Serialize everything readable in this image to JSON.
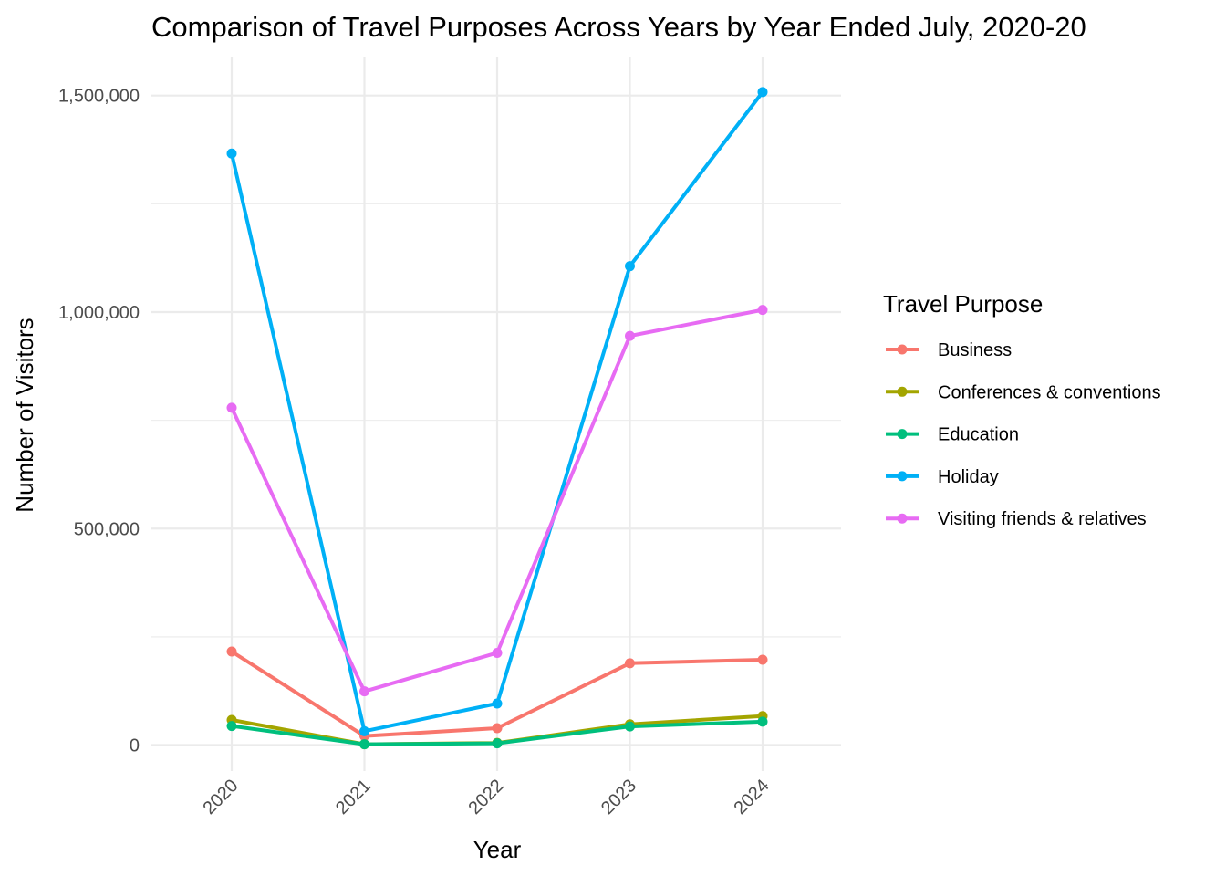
{
  "chart_data": {
    "type": "line",
    "title": "Comparison of Travel Purposes Across Years by Year Ended July, 2020-20",
    "xlabel": "Year",
    "ylabel": "Number of Visitors",
    "x": [
      "2020",
      "2021",
      "2022",
      "2023",
      "2024"
    ],
    "ylim": [
      -60000,
      1590000
    ],
    "y_ticks": [
      0,
      500000,
      1000000,
      1500000
    ],
    "y_tick_labels": [
      "0",
      "500,000",
      "1,000,000",
      "1,500,000"
    ],
    "legend_title": "Travel Purpose",
    "legend_position": "right",
    "grid": true,
    "series": [
      {
        "name": "Business",
        "color": "#F8766D",
        "values": [
          216000,
          21000,
          39000,
          189000,
          197000
        ]
      },
      {
        "name": "Conferences & conventions",
        "color": "#A3A500",
        "values": [
          58000,
          2000,
          5000,
          48000,
          67000
        ]
      },
      {
        "name": "Education",
        "color": "#00BF7D",
        "values": [
          44000,
          2000,
          4000,
          43000,
          54000
        ]
      },
      {
        "name": "Holiday",
        "color": "#00B0F6",
        "values": [
          1366000,
          32000,
          96000,
          1106000,
          1508000
        ]
      },
      {
        "name": "Visiting friends & relatives",
        "color": "#E76BF3",
        "values": [
          779000,
          124000,
          213000,
          945000,
          1005000
        ]
      }
    ]
  }
}
